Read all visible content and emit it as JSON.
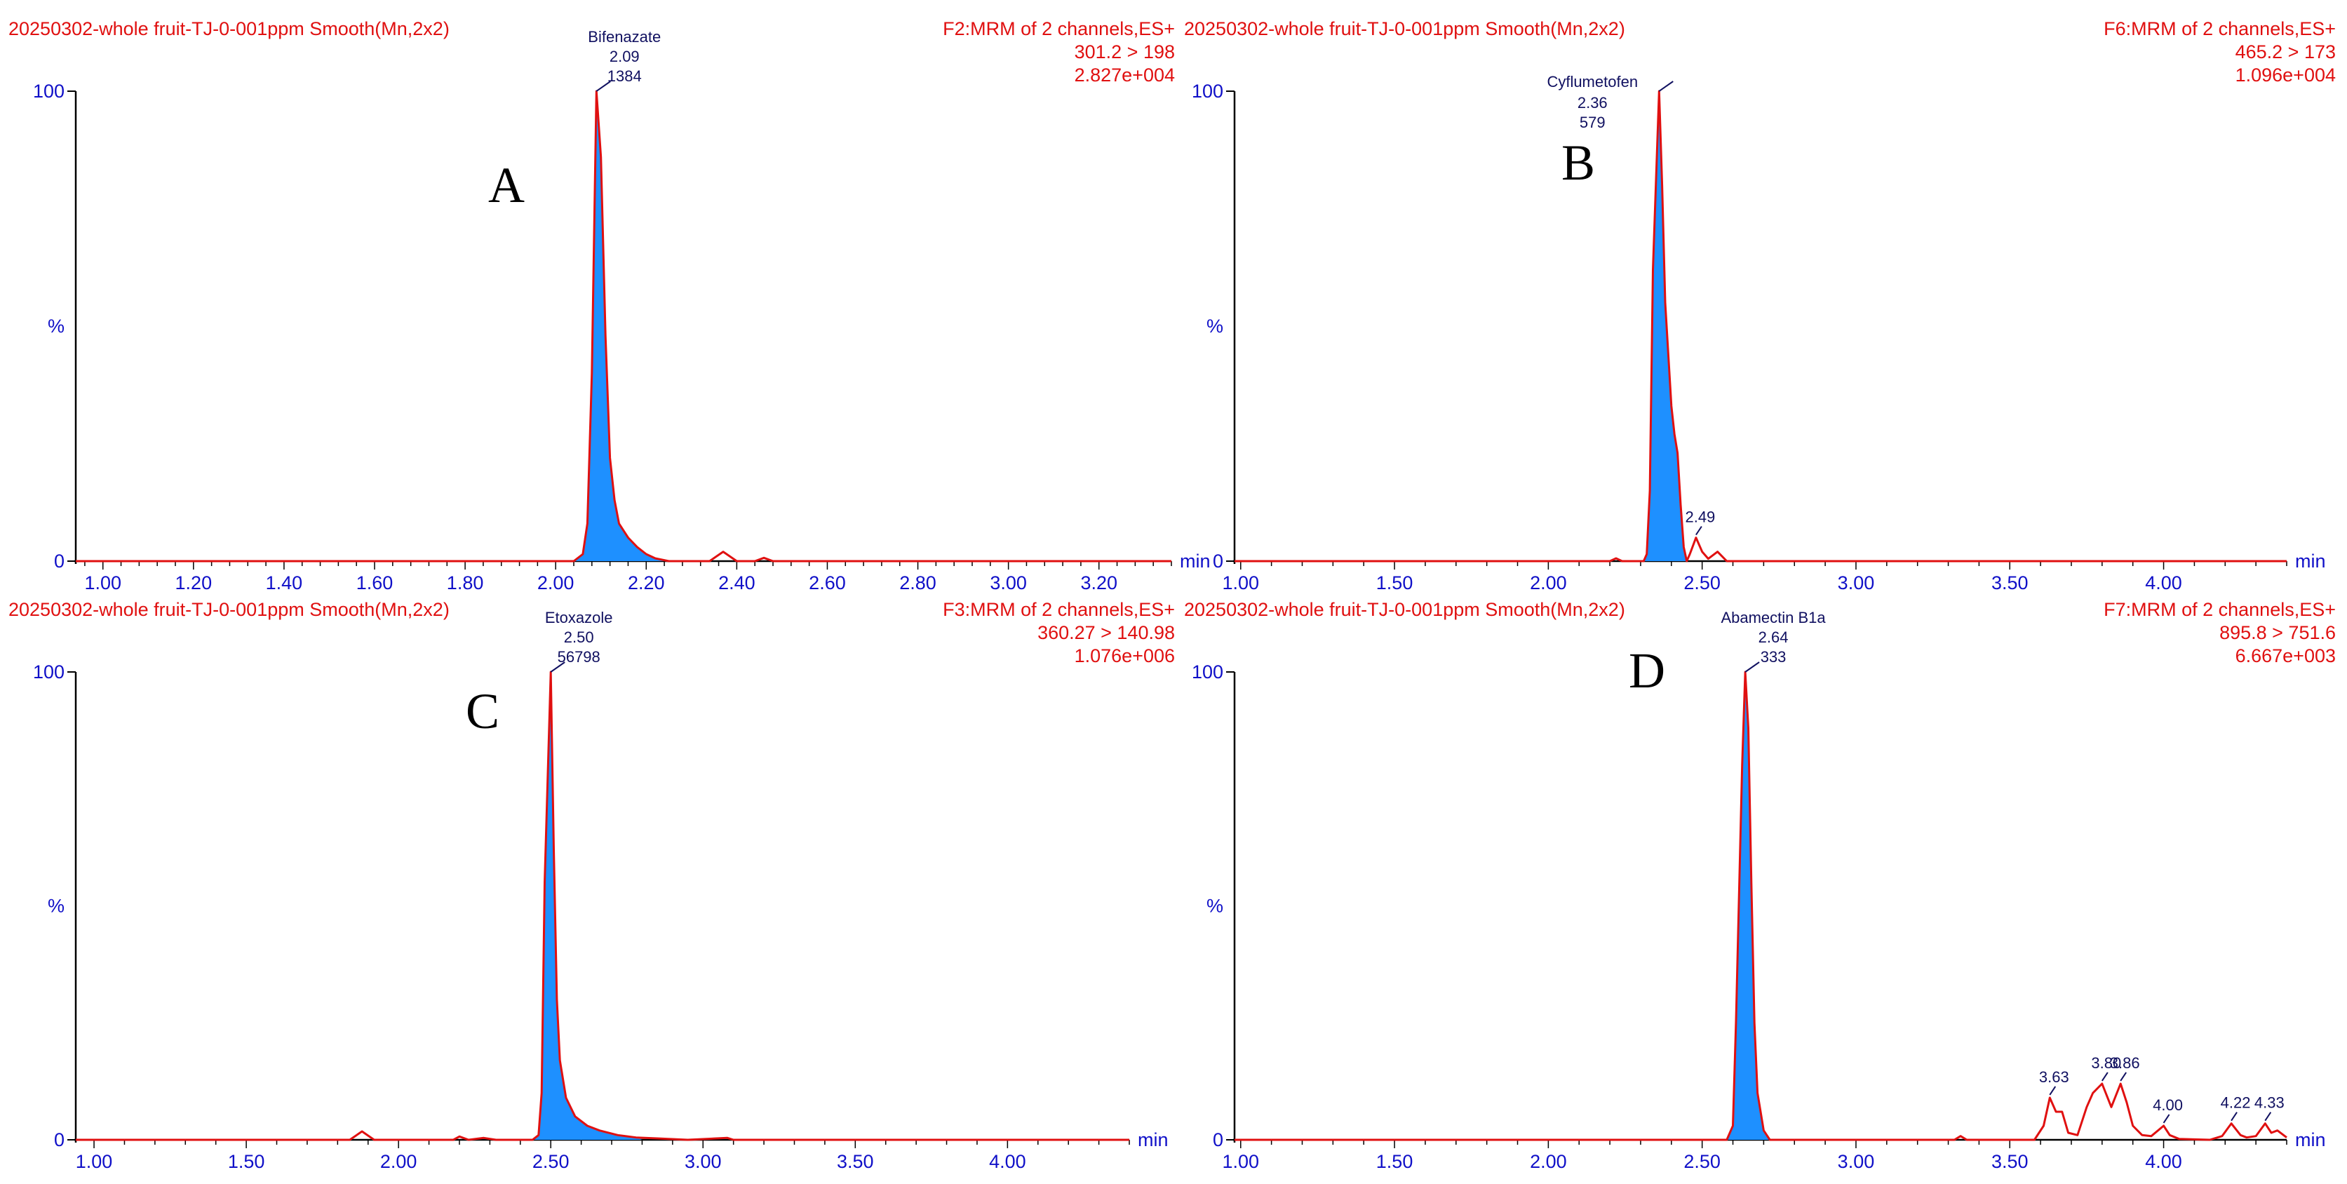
{
  "colors": {
    "trace": "#e01010",
    "fill": "#1e90ff",
    "axis_text": "#1010c8",
    "header": "#e01010",
    "label": "#101060"
  },
  "chart_data": [
    {
      "type": "line",
      "id": "A",
      "panel_letter": "A",
      "header_left": "20250302-whole fruit-TJ-0-001ppm Smooth(Mn,2x2)",
      "header_right": [
        "F2:MRM of 2 channels,ES+",
        "301.2 > 198",
        "2.827e+004"
      ],
      "xlabel": "min",
      "ylabel": "%",
      "xlim": [
        0.94,
        3.36
      ],
      "ylim": [
        0,
        100
      ],
      "xticks": [
        1.0,
        1.2,
        1.4,
        1.6,
        1.8,
        2.0,
        2.2,
        2.4,
        2.6,
        2.8,
        3.0,
        3.2
      ],
      "xtick_labels": [
        "1.00",
        "1.20",
        "1.40",
        "1.60",
        "1.80",
        "2.00",
        "2.20",
        "2.40",
        "2.60",
        "2.80",
        "3.00",
        "3.20"
      ],
      "yticks": [
        0,
        100
      ],
      "ytick_labels": [
        "0",
        "100"
      ],
      "series": [
        {
          "points": [
            [
              0.94,
              0
            ],
            [
              2.04,
              0
            ],
            [
              2.06,
              1.5
            ],
            [
              2.07,
              8
            ],
            [
              2.08,
              40
            ],
            [
              2.09,
              100
            ],
            [
              2.1,
              86
            ],
            [
              2.11,
              48
            ],
            [
              2.12,
              22
            ],
            [
              2.13,
              13
            ],
            [
              2.14,
              8
            ],
            [
              2.16,
              5
            ],
            [
              2.18,
              3
            ],
            [
              2.2,
              1.5
            ],
            [
              2.22,
              0.6
            ],
            [
              2.25,
              0
            ],
            [
              2.34,
              0
            ],
            [
              2.37,
              2
            ],
            [
              2.4,
              0
            ],
            [
              2.44,
              0
            ],
            [
              2.46,
              0.7
            ],
            [
              2.48,
              0
            ],
            [
              3.36,
              0
            ]
          ],
          "fill_range": [
            2.04,
            2.25
          ]
        }
      ],
      "peak_labels": [
        {
          "x": 2.09,
          "y": 100,
          "name": "Bifenazate",
          "rt": "2.09",
          "area": "1384"
        }
      ]
    },
    {
      "type": "line",
      "id": "B",
      "panel_letter": "B",
      "header_left": "20250302-whole fruit-TJ-0-001ppm Smooth(Mn,2x2)",
      "header_right": [
        "F6:MRM of 2 channels,ES+",
        "465.2 > 173",
        "1.096e+004"
      ],
      "xlabel": "min",
      "ylabel": "%",
      "xlim": [
        0.98,
        4.4
      ],
      "ylim": [
        0,
        100
      ],
      "xticks": [
        1.0,
        1.5,
        2.0,
        2.5,
        3.0,
        3.5,
        4.0
      ],
      "xtick_labels": [
        "1.00",
        "1.50",
        "2.00",
        "2.50",
        "3.00",
        "3.50",
        "4.00"
      ],
      "yticks": [
        0,
        100
      ],
      "ytick_labels": [
        "0",
        "100"
      ],
      "series": [
        {
          "points": [
            [
              0.98,
              0
            ],
            [
              2.2,
              0
            ],
            [
              2.22,
              0.6
            ],
            [
              2.24,
              0
            ],
            [
              2.31,
              0
            ],
            [
              2.32,
              1.5
            ],
            [
              2.33,
              15
            ],
            [
              2.34,
              62
            ],
            [
              2.36,
              100
            ],
            [
              2.37,
              80
            ],
            [
              2.38,
              55
            ],
            [
              2.4,
              33
            ],
            [
              2.41,
              27
            ],
            [
              2.42,
              23
            ],
            [
              2.43,
              12
            ],
            [
              2.44,
              3
            ],
            [
              2.45,
              0
            ],
            [
              2.46,
              1.5
            ],
            [
              2.48,
              5
            ],
            [
              2.5,
              2
            ],
            [
              2.52,
              0.5
            ],
            [
              2.55,
              2
            ],
            [
              2.58,
              0
            ],
            [
              4.4,
              0
            ]
          ],
          "fill_range": [
            2.31,
            2.45
          ]
        }
      ],
      "peak_labels": [
        {
          "x": 2.36,
          "y": 100,
          "name": "Cyflumetofen",
          "rt": "2.36",
          "area": "579"
        },
        {
          "x": 2.48,
          "y": 5,
          "name": "",
          "rt": "2.49",
          "area": ""
        }
      ]
    },
    {
      "type": "line",
      "id": "C",
      "panel_letter": "C",
      "header_left": "20250302-whole fruit-TJ-0-001ppm Smooth(Mn,2x2)",
      "header_right": [
        "F3:MRM of 2 channels,ES+",
        "360.27 > 140.98",
        "1.076e+006"
      ],
      "xlabel": "min",
      "ylabel": "%",
      "xlim": [
        0.94,
        4.4
      ],
      "ylim": [
        0,
        100
      ],
      "xticks": [
        1.0,
        1.5,
        2.0,
        2.5,
        3.0,
        3.5,
        4.0
      ],
      "xtick_labels": [
        "1.00",
        "1.50",
        "2.00",
        "2.50",
        "3.00",
        "3.50",
        "4.00"
      ],
      "yticks": [
        0,
        100
      ],
      "ytick_labels": [
        "0",
        "100"
      ],
      "series": [
        {
          "points": [
            [
              0.94,
              0
            ],
            [
              1.84,
              0
            ],
            [
              1.88,
              1.8
            ],
            [
              1.92,
              0
            ],
            [
              2.18,
              0
            ],
            [
              2.2,
              0.7
            ],
            [
              2.23,
              0
            ],
            [
              2.28,
              0.4
            ],
            [
              2.32,
              0
            ],
            [
              2.44,
              0
            ],
            [
              2.46,
              1
            ],
            [
              2.47,
              10
            ],
            [
              2.48,
              55
            ],
            [
              2.5,
              100
            ],
            [
              2.51,
              62
            ],
            [
              2.52,
              30
            ],
            [
              2.53,
              17
            ],
            [
              2.55,
              9
            ],
            [
              2.58,
              5
            ],
            [
              2.62,
              3
            ],
            [
              2.66,
              2
            ],
            [
              2.72,
              1
            ],
            [
              2.78,
              0.5
            ],
            [
              2.85,
              0.3
            ],
            [
              2.95,
              0
            ],
            [
              3.08,
              0.4
            ],
            [
              3.1,
              0
            ],
            [
              4.4,
              0
            ]
          ],
          "fill_range": [
            2.44,
            2.8
          ]
        }
      ],
      "peak_labels": [
        {
          "x": 2.5,
          "y": 100,
          "name": "Etoxazole",
          "rt": "2.50",
          "area": "56798"
        }
      ]
    },
    {
      "type": "line",
      "id": "D",
      "panel_letter": "D",
      "header_left": "20250302-whole fruit-TJ-0-001ppm Smooth(Mn,2x2)",
      "header_right": [
        "F7:MRM of 2 channels,ES+",
        "895.8 > 751.6",
        "6.667e+003"
      ],
      "xlabel": "min",
      "ylabel": "%",
      "xlim": [
        0.98,
        4.4
      ],
      "ylim": [
        0,
        100
      ],
      "xticks": [
        1.0,
        1.5,
        2.0,
        2.5,
        3.0,
        3.5,
        4.0
      ],
      "xtick_labels": [
        "1.00",
        "1.50",
        "2.00",
        "2.50",
        "3.00",
        "3.50",
        "4.00"
      ],
      "yticks": [
        0,
        100
      ],
      "ytick_labels": [
        "0",
        "100"
      ],
      "series": [
        {
          "points": [
            [
              0.98,
              0
            ],
            [
              2.58,
              0
            ],
            [
              2.6,
              3
            ],
            [
              2.61,
              25
            ],
            [
              2.63,
              80
            ],
            [
              2.64,
              100
            ],
            [
              2.65,
              88
            ],
            [
              2.66,
              55
            ],
            [
              2.67,
              25
            ],
            [
              2.68,
              10
            ],
            [
              2.7,
              2
            ],
            [
              2.72,
              0
            ],
            [
              3.32,
              0
            ],
            [
              3.34,
              0.8
            ],
            [
              3.36,
              0
            ],
            [
              3.58,
              0
            ],
            [
              3.61,
              3
            ],
            [
              3.63,
              9
            ],
            [
              3.65,
              6
            ],
            [
              3.67,
              6
            ],
            [
              3.69,
              1.5
            ],
            [
              3.72,
              1
            ],
            [
              3.75,
              7
            ],
            [
              3.77,
              10
            ],
            [
              3.8,
              12
            ],
            [
              3.83,
              7
            ],
            [
              3.86,
              12
            ],
            [
              3.88,
              8
            ],
            [
              3.9,
              3
            ],
            [
              3.93,
              1
            ],
            [
              3.96,
              0.8
            ],
            [
              4.0,
              3
            ],
            [
              4.02,
              1
            ],
            [
              4.05,
              0.2
            ],
            [
              4.15,
              0
            ],
            [
              4.19,
              0.8
            ],
            [
              4.22,
              3.5
            ],
            [
              4.25,
              1
            ],
            [
              4.27,
              0.5
            ],
            [
              4.3,
              0.8
            ],
            [
              4.33,
              3.5
            ],
            [
              4.35,
              1.5
            ],
            [
              4.37,
              2
            ],
            [
              4.4,
              0.5
            ]
          ],
          "fill_range": [
            2.58,
            2.72
          ]
        }
      ],
      "peak_labels": [
        {
          "x": 2.64,
          "y": 100,
          "name": "Abamectin B1a",
          "rt": "2.64",
          "area": "333"
        },
        {
          "x": 3.63,
          "y": 9,
          "name": "",
          "rt": "3.63",
          "area": ""
        },
        {
          "x": 3.8,
          "y": 12,
          "name": "",
          "rt": "3.80",
          "area": ""
        },
        {
          "x": 3.86,
          "y": 12,
          "name": "",
          "rt": "3.86",
          "area": ""
        },
        {
          "x": 4.0,
          "y": 3,
          "name": "",
          "rt": "4.00",
          "area": ""
        },
        {
          "x": 4.22,
          "y": 3.5,
          "name": "",
          "rt": "4.22",
          "area": ""
        },
        {
          "x": 4.33,
          "y": 3.5,
          "name": "",
          "rt": "4.33",
          "area": ""
        }
      ]
    }
  ]
}
